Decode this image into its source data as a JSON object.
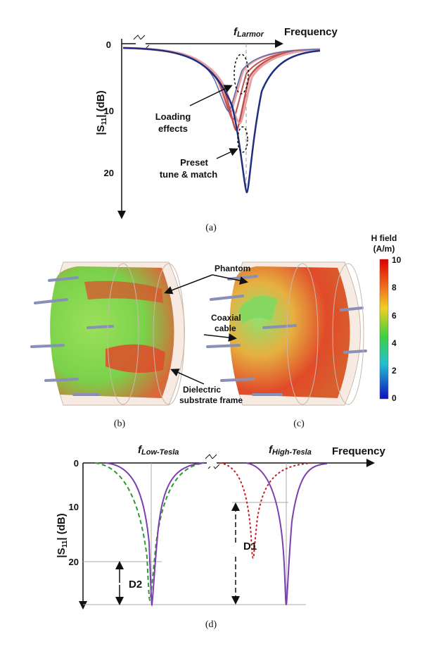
{
  "panel_a": {
    "axis_title": "Frequency",
    "marker": {
      "symbol": "f",
      "subscript": "Larmor"
    },
    "y_label": {
      "pre": "|S",
      "sub": "11",
      "post": "| (dB)"
    },
    "yticks": [
      0,
      10,
      20
    ],
    "annotations": {
      "loading": [
        "Loading",
        "effects"
      ],
      "preset": [
        "Preset",
        "tune & match"
      ]
    },
    "caption": "(a)"
  },
  "panel_b": {
    "labels": {
      "phantom": "Phantom",
      "coaxial": [
        "Coaxial",
        "cable"
      ],
      "frame": [
        "Dielectric",
        "substrate frame"
      ]
    },
    "caption": "(b)"
  },
  "panel_c": {
    "caption": "(c)"
  },
  "colorbar": {
    "title": [
      "H field",
      "(A/m)"
    ],
    "ticks": [
      10,
      8,
      6,
      4,
      2,
      0
    ]
  },
  "panel_d": {
    "axis_title": "Frequency",
    "markers": [
      {
        "symbol": "f",
        "subscript": "Low-Tesla"
      },
      {
        "symbol": "f",
        "subscript": "High-Tesla"
      }
    ],
    "y_label": {
      "pre": "|S",
      "sub": "11",
      "post": "| (dB)"
    },
    "yticks": [
      0,
      10,
      20
    ],
    "annotations": {
      "d1": "D1",
      "d2": "D2"
    },
    "caption": "(d)"
  }
}
